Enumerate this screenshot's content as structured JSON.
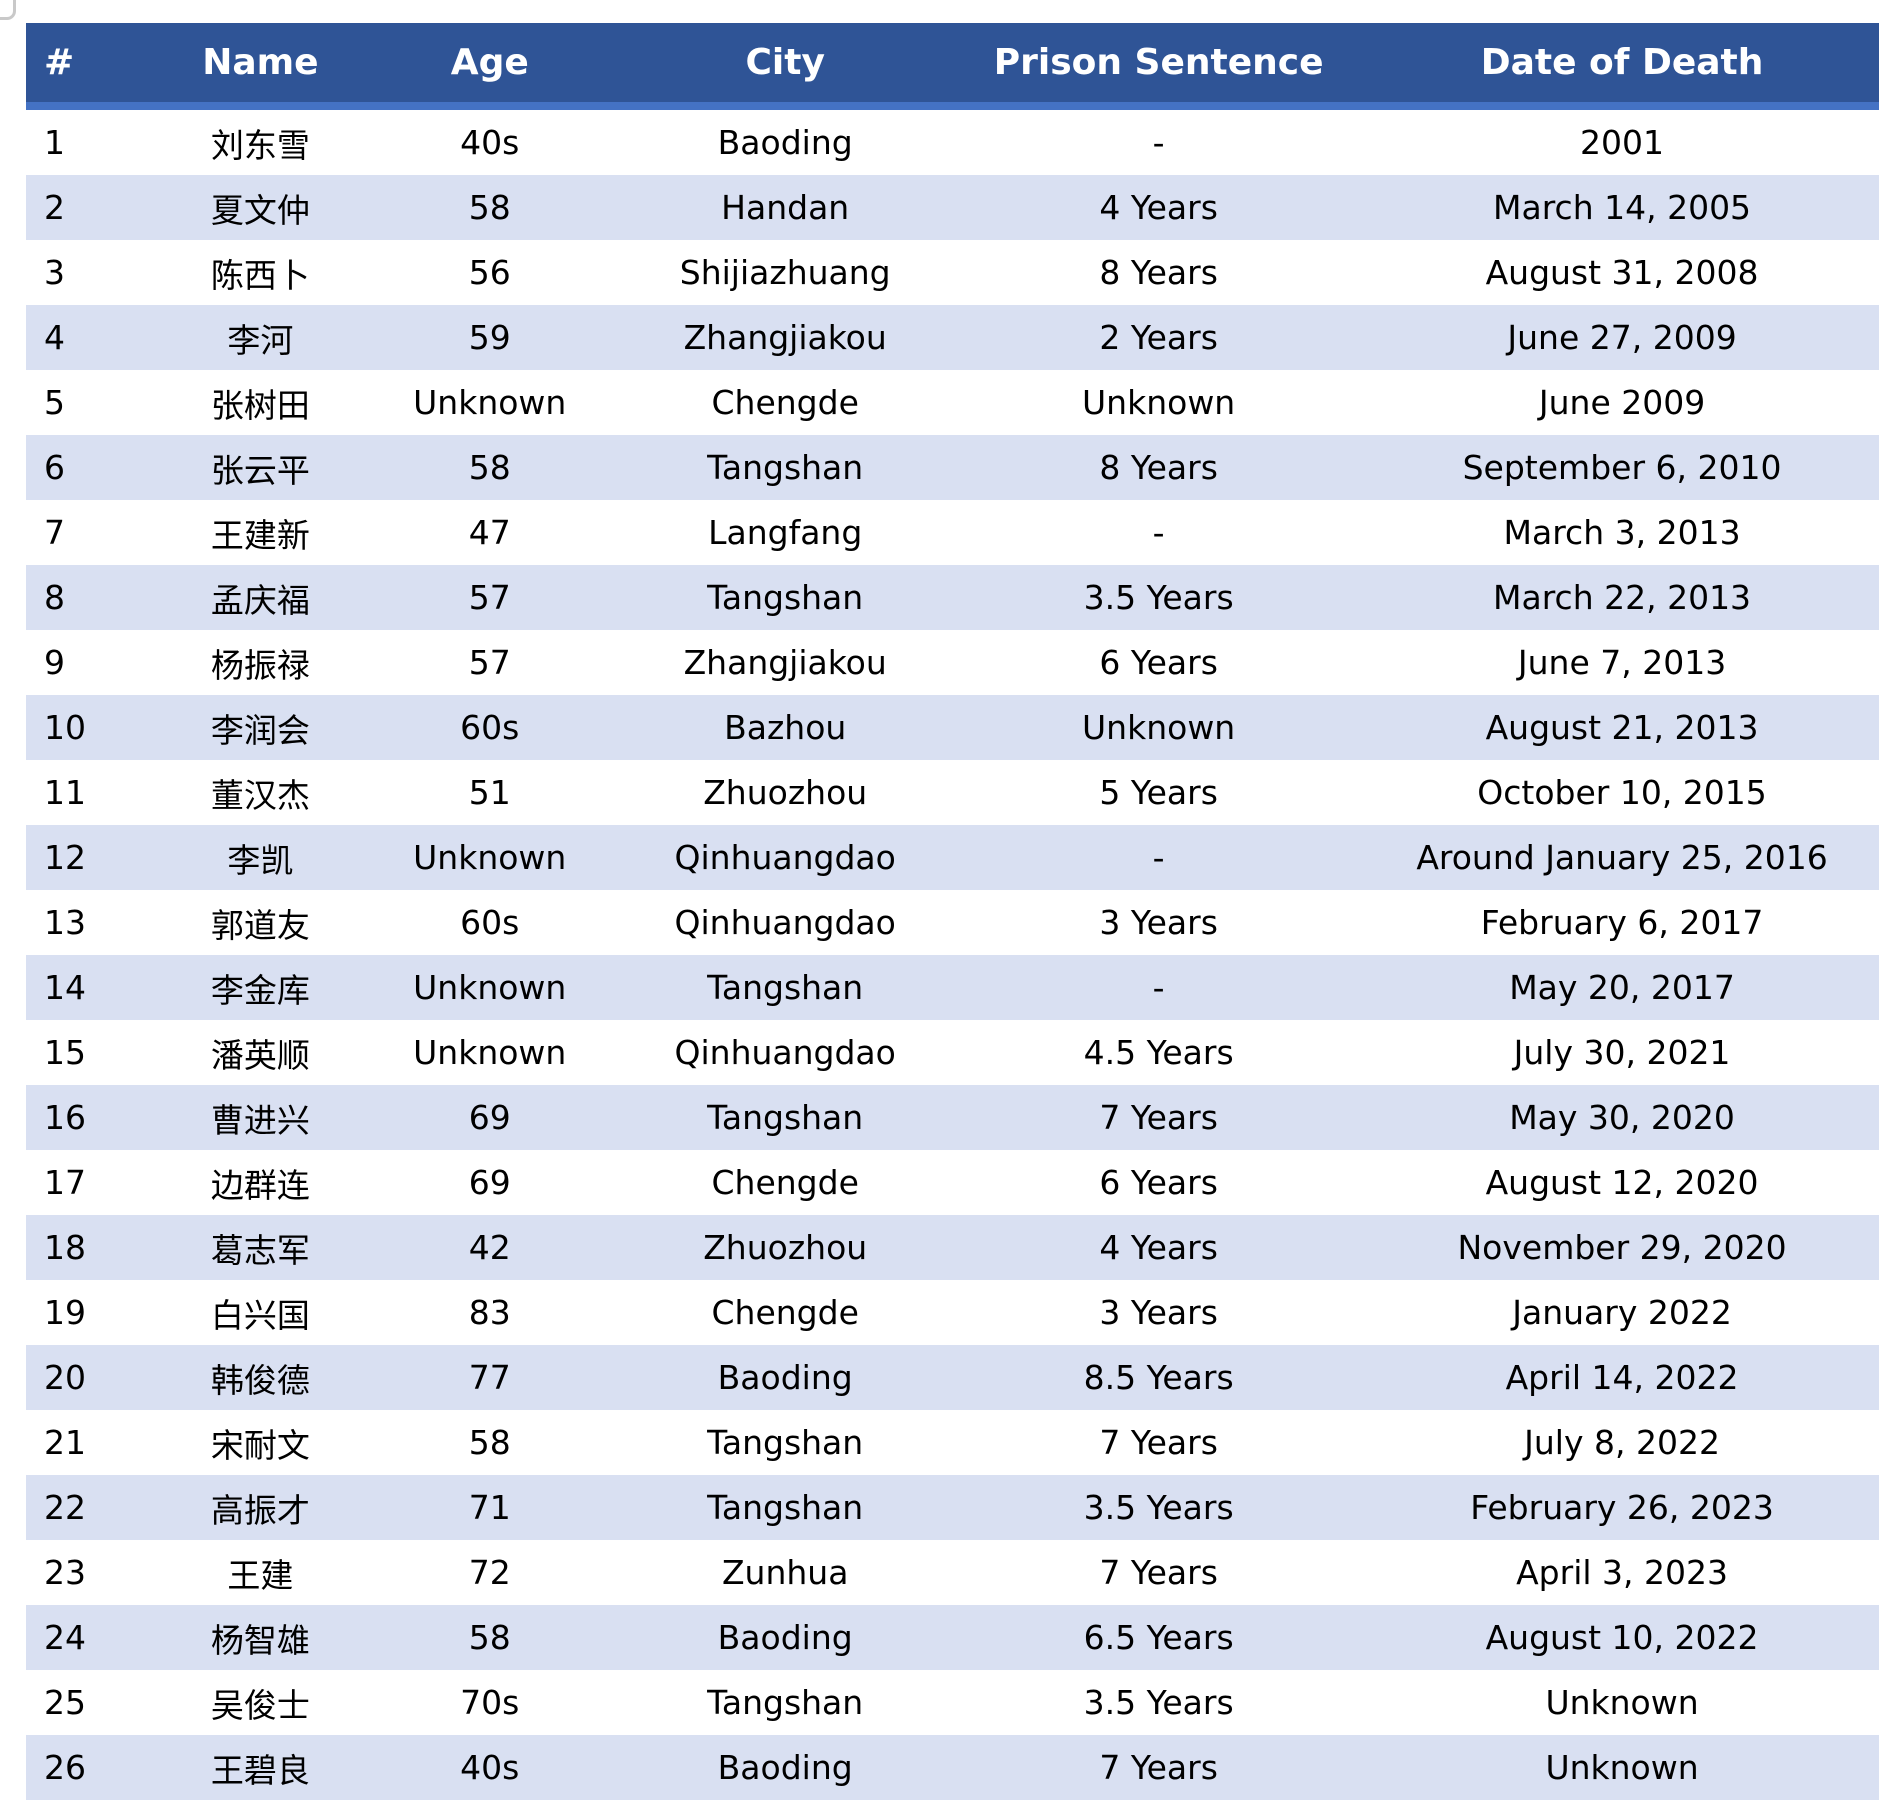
{
  "colors": {
    "header_background": "#2F5496",
    "header_text": "#FFFFFF",
    "header_accent_line": "#4472C4",
    "row_band": "#D9E0F2",
    "row_plain": "#FFFFFF",
    "body_text": "#000000",
    "corner_artifact": "#C9C9C9"
  },
  "table": {
    "columns": [
      {
        "key": "num",
        "label": "#"
      },
      {
        "key": "name",
        "label": "Name"
      },
      {
        "key": "age",
        "label": "Age"
      },
      {
        "key": "city",
        "label": "City"
      },
      {
        "key": "sentence",
        "label": "Prison Sentence"
      },
      {
        "key": "date",
        "label": "Date of Death"
      }
    ],
    "rows": [
      {
        "num": "1",
        "name": "刘东雪",
        "age": "40s",
        "city": "Baoding",
        "sentence": "-",
        "date": "2001"
      },
      {
        "num": "2",
        "name": "夏文仲",
        "age": "58",
        "city": "Handan",
        "sentence": "4 Years",
        "date": "March 14, 2005"
      },
      {
        "num": "3",
        "name": "陈西卜",
        "age": "56",
        "city": "Shijiazhuang",
        "sentence": "8 Years",
        "date": "August 31, 2008"
      },
      {
        "num": "4",
        "name": "李河",
        "age": "59",
        "city": "Zhangjiakou",
        "sentence": "2 Years",
        "date": "June 27, 2009"
      },
      {
        "num": "5",
        "name": "张树田",
        "age": "Unknown",
        "city": "Chengde",
        "sentence": "Unknown",
        "date": "June 2009"
      },
      {
        "num": "6",
        "name": "张云平",
        "age": "58",
        "city": "Tangshan",
        "sentence": "8 Years",
        "date": "September 6, 2010"
      },
      {
        "num": "7",
        "name": "王建新",
        "age": "47",
        "city": "Langfang",
        "sentence": "-",
        "date": "March 3, 2013"
      },
      {
        "num": "8",
        "name": "孟庆福",
        "age": "57",
        "city": "Tangshan",
        "sentence": "3.5 Years",
        "date": "March 22, 2013"
      },
      {
        "num": "9",
        "name": "杨振禄",
        "age": "57",
        "city": "Zhangjiakou",
        "sentence": "6 Years",
        "date": "June 7, 2013"
      },
      {
        "num": "10",
        "name": "李润会",
        "age": "60s",
        "city": "Bazhou",
        "sentence": "Unknown",
        "date": "August 21, 2013"
      },
      {
        "num": "11",
        "name": "董汉杰",
        "age": "51",
        "city": "Zhuozhou",
        "sentence": "5 Years",
        "date": "October 10, 2015"
      },
      {
        "num": "12",
        "name": "李凯",
        "age": "Unknown",
        "city": "Qinhuangdao",
        "sentence": "-",
        "date": "Around January 25, 2016"
      },
      {
        "num": "13",
        "name": "郭道友",
        "age": "60s",
        "city": "Qinhuangdao",
        "sentence": "3 Years",
        "date": "February 6, 2017"
      },
      {
        "num": "14",
        "name": "李金库",
        "age": "Unknown",
        "city": "Tangshan",
        "sentence": "-",
        "date": "May 20, 2017"
      },
      {
        "num": "15",
        "name": "潘英顺",
        "age": "Unknown",
        "city": "Qinhuangdao",
        "sentence": "4.5 Years",
        "date": "July 30, 2021"
      },
      {
        "num": "16",
        "name": "曹进兴",
        "age": "69",
        "city": "Tangshan",
        "sentence": "7 Years",
        "date": "May 30, 2020"
      },
      {
        "num": "17",
        "name": "边群连",
        "age": "69",
        "city": "Chengde",
        "sentence": "6 Years",
        "date": "August 12, 2020"
      },
      {
        "num": "18",
        "name": "葛志军",
        "age": "42",
        "city": "Zhuozhou",
        "sentence": "4 Years",
        "date": "November 29, 2020"
      },
      {
        "num": "19",
        "name": "白兴国",
        "age": "83",
        "city": "Chengde",
        "sentence": "3 Years",
        "date": "January 2022"
      },
      {
        "num": "20",
        "name": "韩俊德",
        "age": "77",
        "city": "Baoding",
        "sentence": "8.5 Years",
        "date": "April 14, 2022"
      },
      {
        "num": "21",
        "name": "宋耐文",
        "age": "58",
        "city": "Tangshan",
        "sentence": "7 Years",
        "date": "July 8, 2022"
      },
      {
        "num": "22",
        "name": "高振才",
        "age": "71",
        "city": "Tangshan",
        "sentence": "3.5 Years",
        "date": "February 26, 2023"
      },
      {
        "num": "23",
        "name": "王建",
        "age": "72",
        "city": "Zunhua",
        "sentence": "7 Years",
        "date": "April 3, 2023"
      },
      {
        "num": "24",
        "name": "杨智雄",
        "age": "58",
        "city": "Baoding",
        "sentence": "6.5 Years",
        "date": "August 10, 2022"
      },
      {
        "num": "25",
        "name": "吴俊士",
        "age": "70s",
        "city": "Tangshan",
        "sentence": "3.5 Years",
        "date": "Unknown"
      },
      {
        "num": "26",
        "name": "王碧良",
        "age": "40s",
        "city": "Baoding",
        "sentence": "7 Years",
        "date": "Unknown"
      }
    ]
  }
}
